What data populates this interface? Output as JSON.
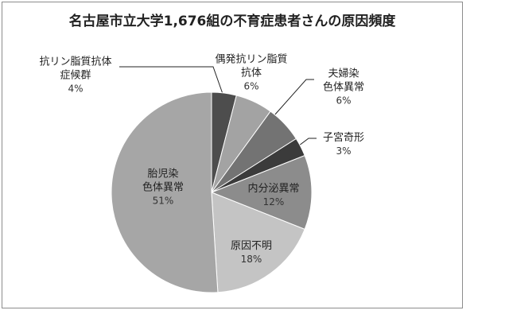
{
  "chart_data": {
    "type": "pie",
    "title": "名古屋市立大学1,676組の不育症患者さんの原因頻度",
    "categories": [
      "抗リン脂質抗体\n症候群",
      "偶発抗リン脂質\n抗体",
      "夫婦染\n色体異常",
      "子宮奇形",
      "内分泌異常",
      "原因不明",
      "胎児染\n色体異常"
    ],
    "values": [
      4,
      6,
      6,
      3,
      12,
      18,
      51
    ],
    "value_labels": [
      "4%",
      "6%",
      "6%",
      "3%",
      "12%",
      "18%",
      "51%"
    ],
    "colors": [
      "#4d4d4d",
      "#a3a3a3",
      "#737373",
      "#3b3b3b",
      "#8c8c8c",
      "#c4c4c4",
      "#a6a6a6"
    ]
  }
}
